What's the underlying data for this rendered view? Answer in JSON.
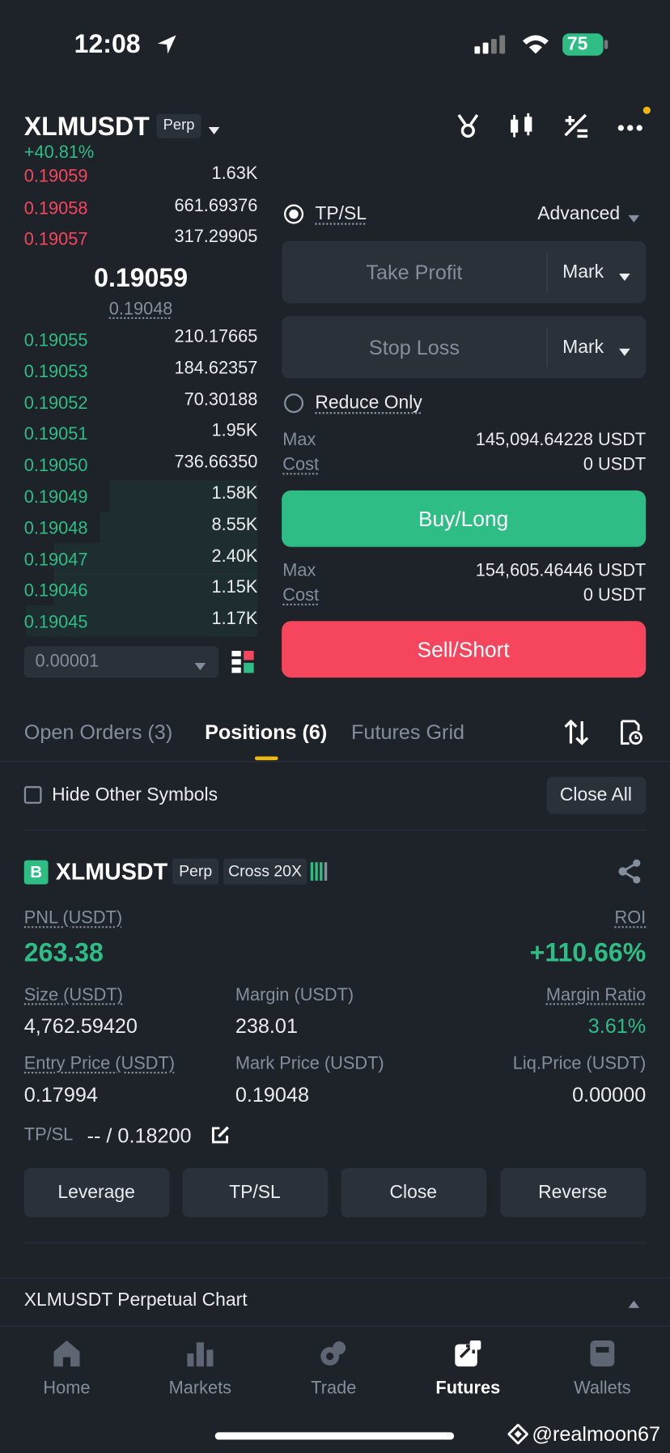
{
  "status_bar": {
    "time": "12:08",
    "battery": "75"
  },
  "header": {
    "symbol": "XLMUSDT",
    "badge": "Perp",
    "change": "+40.81%"
  },
  "order_book": {
    "asks": [
      [
        "0.19059",
        "1.63K"
      ],
      [
        "0.19058",
        "661.69376"
      ],
      [
        "0.19057",
        "317.29905"
      ]
    ],
    "last_price": "0.19059",
    "mark_price": "0.19048",
    "bids": [
      [
        "0.19055",
        "210.17665"
      ],
      [
        "0.19053",
        "184.62357"
      ],
      [
        "0.19052",
        "70.30188"
      ],
      [
        "0.19051",
        "1.95K"
      ],
      [
        "0.19050",
        "736.66350"
      ],
      [
        "0.19049",
        "1.58K"
      ],
      [
        "0.19048",
        "8.55K"
      ],
      [
        "0.19047",
        "2.40K"
      ],
      [
        "0.19046",
        "1.15K"
      ],
      [
        "0.19045",
        "1.17K"
      ]
    ],
    "precision": "0.00001"
  },
  "order_form": {
    "tpsl": "TP/SL",
    "advanced": "Advanced",
    "take_profit": "Take Profit",
    "take_profit_type": "Mark",
    "stop_loss": "Stop Loss",
    "stop_loss_type": "Mark",
    "reduce_only": "Reduce Only",
    "buy": {
      "max_label": "Max",
      "max_value": "145,094.64228 USDT",
      "cost_label": "Cost",
      "cost_value": "0 USDT",
      "button": "Buy/Long"
    },
    "sell": {
      "max_label": "Max",
      "max_value": "154,605.46446 USDT",
      "cost_label": "Cost",
      "cost_value": "0 USDT",
      "button": "Sell/Short"
    }
  },
  "tabs": [
    "Open Orders (3)",
    "Positions (6)",
    "Futures Grid"
  ],
  "filter": {
    "hide_other": "Hide Other Symbols",
    "close_all": "Close All"
  },
  "position": {
    "side": "B",
    "symbol": "XLMUSDT",
    "type": "Perp",
    "margin_mode": "Cross 20X",
    "pnl_label": "PNL (USDT)",
    "pnl": "263.38",
    "roi_label": "ROI",
    "roi": "+110.66%",
    "fields": [
      {
        "label": "Size (USDT)",
        "value": "4,762.59420"
      },
      {
        "label": "Margin (USDT)",
        "value": "238.01"
      },
      {
        "label": "Margin Ratio",
        "value": "3.61%"
      },
      {
        "label": "Entry Price (USDT)",
        "value": "0.17994"
      },
      {
        "label": "Mark Price (USDT)",
        "value": "0.19048"
      },
      {
        "label": "Liq.Price (USDT)",
        "value": "0.00000"
      }
    ],
    "tpsl_label": "TP/SL",
    "tpsl_value": "-- / 0.18200",
    "buttons": [
      "Leverage",
      "TP/SL",
      "Close",
      "Reverse"
    ]
  },
  "chart_bar": "XLMUSDT Perpetual  Chart",
  "nav": [
    "Home",
    "Markets",
    "Trade",
    "Futures",
    "Wallets"
  ],
  "watermark": "@realmoon67"
}
